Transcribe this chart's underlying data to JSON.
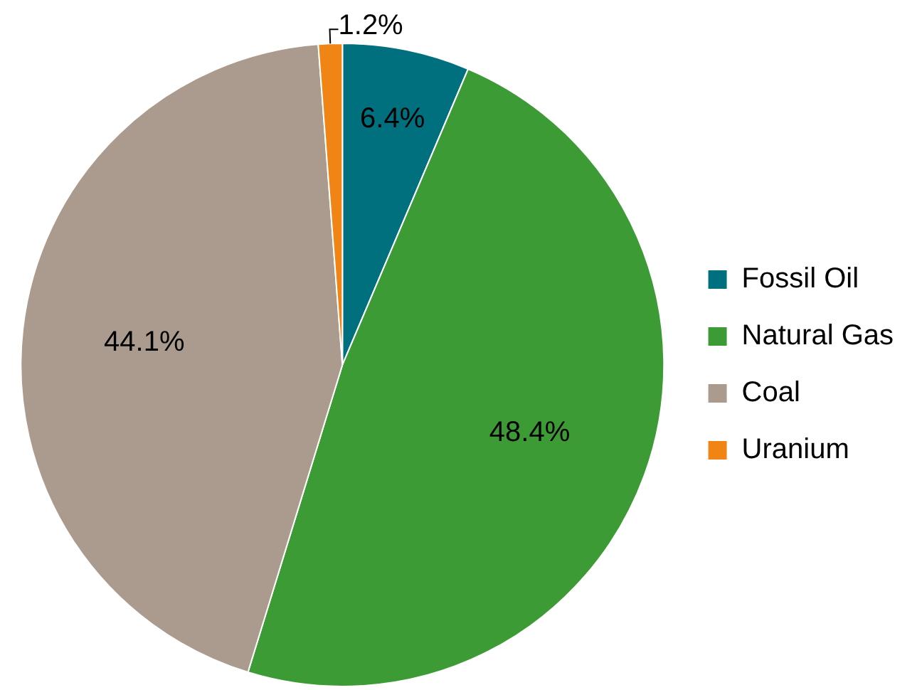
{
  "chart_data": {
    "type": "pie",
    "categories": [
      "Fossil Oil",
      "Natural Gas",
      "Coal",
      "Uranium"
    ],
    "values": [
      6.4,
      48.4,
      44.1,
      1.2
    ],
    "colors": [
      "#00707f",
      "#3d9b35",
      "#ab9b8e",
      "#f08516"
    ],
    "value_labels": [
      "6.4%",
      "48.4%",
      "44.1%",
      "1.2%"
    ],
    "legend": "right"
  }
}
